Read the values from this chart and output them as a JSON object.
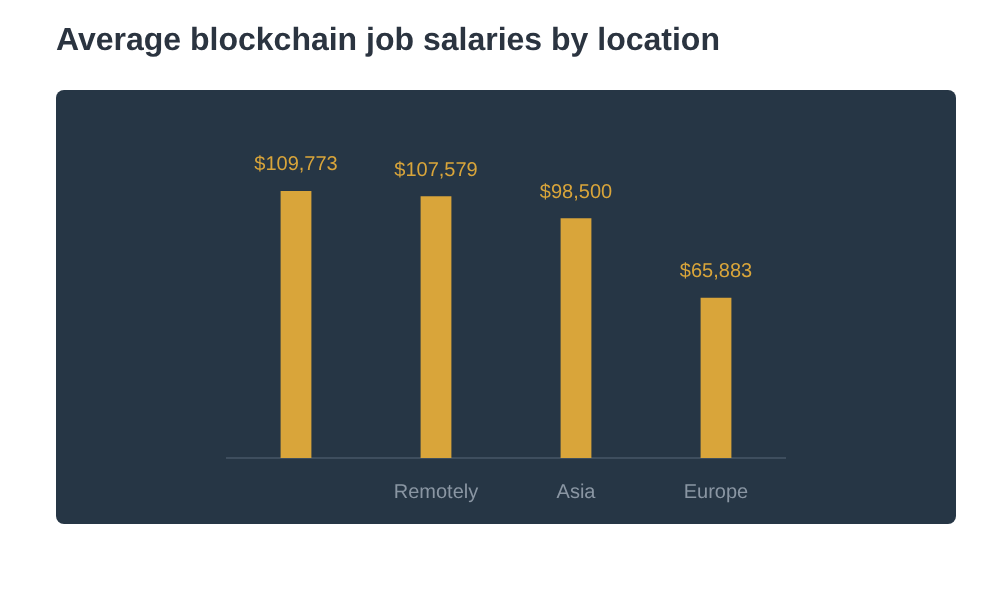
{
  "chart_data": {
    "type": "bar",
    "title": "Average blockchain job salaries by location",
    "categories": [
      null,
      "Remotely",
      "Asia",
      "Europe"
    ],
    "values": [
      109773,
      107579,
      98500,
      65883
    ],
    "value_labels": [
      "$109,773",
      "$107,579",
      "$98,500",
      "$65,883"
    ],
    "color": "#d9a53a",
    "grid": false,
    "legend": false
  }
}
